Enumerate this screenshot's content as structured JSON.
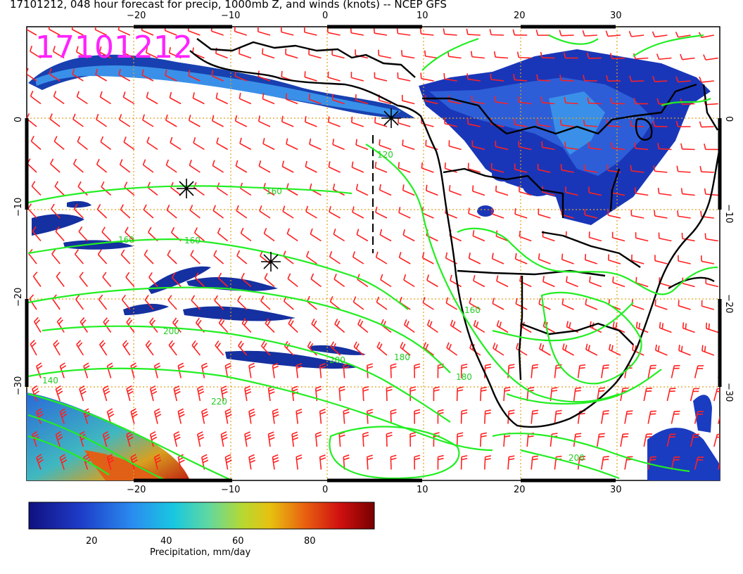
{
  "header": {
    "title": "17101212, 048 hour forecast for precip, 1000mb Z, and winds (knots) -- NCEP GFS"
  },
  "stamp": {
    "text": "17101212",
    "color": "#ff22ff"
  },
  "axes": {
    "lon_ticks": [
      "−20",
      "−10",
      "0",
      "10",
      "20",
      "30"
    ],
    "lat_ticks": [
      "0",
      "−10",
      "−20",
      "−30"
    ]
  },
  "contours": {
    "color": "#22ee22",
    "labels": [
      "160",
      "160",
      "160",
      "120",
      "140",
      "180",
      "200",
      "220",
      "200",
      "200",
      "180",
      "160"
    ]
  },
  "colorbar": {
    "title": "Precipitation, mm/day",
    "ticks": [
      "20",
      "40",
      "60",
      "80"
    ],
    "colors": [
      "#101080",
      "#1e3cc8",
      "#2a8cf0",
      "#18c8e0",
      "#60d8a0",
      "#b8d830",
      "#e8c010",
      "#e86010",
      "#d01010",
      "#780000"
    ]
  },
  "colors": {
    "wind_barbs": "#ff2020",
    "coastline": "#000000",
    "grid": "#e0a020",
    "precip_low": "#1030a8",
    "precip_mid": "#2a7ae0"
  }
}
